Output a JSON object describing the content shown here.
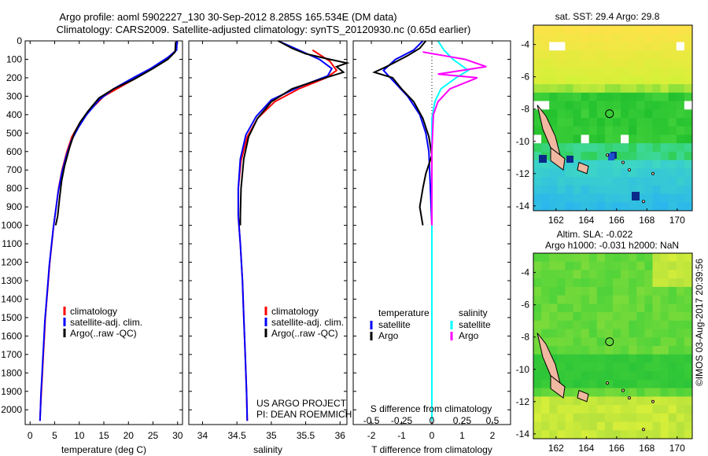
{
  "header": {
    "line1": "Argo profile: aoml 5902227_130 30-Sep-2012 8.285S 165.534E (DM data)",
    "line2": "Climatology: CARS2009. Satellite-adjusted climatology: synTS_20120930.nc (0.65d earlier)"
  },
  "colors": {
    "climatology": "#ff0000",
    "satellite": "#0000ff",
    "argo": "#000000",
    "sat_diff": "#00ffff",
    "argo_s_diff": "#ff00ff"
  },
  "icons": [
    "legend-line-icon",
    "float-position-circle-icon"
  ],
  "depth_ticks": [
    0,
    100,
    200,
    300,
    400,
    500,
    600,
    700,
    800,
    900,
    1000,
    1100,
    1200,
    1300,
    1400,
    1500,
    1600,
    1700,
    1800,
    1900,
    2000
  ],
  "chart_data": [
    {
      "type": "line",
      "name": "temperature-profile",
      "xlabel": "temperature (deg C)",
      "xlim": [
        -1,
        31
      ],
      "ylim": [
        2080,
        0
      ],
      "xticks": [
        0,
        5,
        10,
        15,
        20,
        25,
        30
      ],
      "legend": [
        "climatology",
        "satellite-adj. clim.",
        "Argo(..raw -QC)"
      ],
      "legend_position": "lower-center",
      "series": [
        {
          "name": "climatology",
          "points": [
            [
              29.8,
              0
            ],
            [
              29.7,
              50
            ],
            [
              28.5,
              80
            ],
            [
              26,
              130
            ],
            [
              23,
              180
            ],
            [
              19,
              240
            ],
            [
              15,
              300
            ],
            [
              12,
              380
            ],
            [
              10,
              450
            ],
            [
              8.5,
              520
            ],
            [
              7.5,
              600
            ],
            [
              6.5,
              700
            ],
            [
              5.8,
              800
            ],
            [
              5.3,
              900
            ],
            [
              4.8,
              1000
            ],
            [
              4.4,
              1100
            ],
            [
              4.0,
              1200
            ],
            [
              3.7,
              1300
            ],
            [
              3.4,
              1400
            ],
            [
              3.1,
              1500
            ],
            [
              2.9,
              1600
            ],
            [
              2.7,
              1700
            ],
            [
              2.5,
              1800
            ],
            [
              2.3,
              1900
            ],
            [
              2.1,
              2000
            ],
            [
              2.0,
              2060
            ]
          ]
        },
        {
          "name": "satellite-adj. clim.",
          "points": [
            [
              29.9,
              0
            ],
            [
              29.8,
              50
            ],
            [
              28,
              90
            ],
            [
              24.5,
              150
            ],
            [
              21,
              200
            ],
            [
              17,
              260
            ],
            [
              14,
              320
            ],
            [
              11.5,
              400
            ],
            [
              9.8,
              470
            ],
            [
              8.4,
              540
            ],
            [
              7.4,
              620
            ],
            [
              6.4,
              720
            ],
            [
              5.7,
              820
            ],
            [
              5.2,
              920
            ],
            [
              4.7,
              1020
            ],
            [
              4.3,
              1120
            ],
            [
              3.9,
              1220
            ],
            [
              3.6,
              1320
            ],
            [
              3.3,
              1420
            ],
            [
              3.0,
              1520
            ],
            [
              2.8,
              1620
            ],
            [
              2.6,
              1720
            ],
            [
              2.4,
              1820
            ],
            [
              2.2,
              1920
            ],
            [
              2.1,
              2000
            ],
            [
              2.0,
              2060
            ]
          ]
        },
        {
          "name": "Argo(..raw -QC)",
          "points": [
            [
              29.6,
              5
            ],
            [
              29.5,
              60
            ],
            [
              28,
              100
            ],
            [
              25,
              150
            ],
            [
              21,
              210
            ],
            [
              17,
              260
            ],
            [
              14,
              310
            ],
            [
              11.8,
              380
            ],
            [
              10.2,
              440
            ],
            [
              9,
              500
            ],
            [
              8,
              580
            ],
            [
              7,
              680
            ],
            [
              6.4,
              760
            ],
            [
              6.0,
              850
            ],
            [
              5.6,
              950
            ],
            [
              5.2,
              1000
            ]
          ]
        }
      ]
    },
    {
      "type": "line",
      "name": "salinity-profile",
      "xlabel": "salinity",
      "xlim": [
        33.8,
        36.1
      ],
      "ylim": [
        2080,
        0
      ],
      "xticks": [
        34,
        34.5,
        35,
        35.5,
        36
      ],
      "legend": [
        "climatology",
        "satellite-adj. clim.",
        "Argo(..raw -QC)"
      ],
      "legend_position": "lower-right",
      "annotation": [
        "US ARGO PROJECT",
        "PI: DEAN ROEMMICH"
      ],
      "series": [
        {
          "name": "climatology",
          "points": [
            [
              35.6,
              50
            ],
            [
              35.85,
              110
            ],
            [
              35.95,
              160
            ],
            [
              35.8,
              200
            ],
            [
              35.4,
              260
            ],
            [
              35.05,
              330
            ],
            [
              34.8,
              420
            ],
            [
              34.65,
              520
            ],
            [
              34.56,
              650
            ],
            [
              34.52,
              800
            ],
            [
              34.52,
              950
            ],
            [
              34.55,
              1100
            ],
            [
              34.58,
              1300
            ],
            [
              34.6,
              1500
            ],
            [
              34.62,
              1700
            ],
            [
              34.64,
              1900
            ],
            [
              34.65,
              2060
            ]
          ]
        },
        {
          "name": "satellite-adj. clim.",
          "points": [
            [
              35.1,
              0
            ],
            [
              35.4,
              50
            ],
            [
              35.7,
              100
            ],
            [
              35.88,
              150
            ],
            [
              35.82,
              190
            ],
            [
              35.4,
              250
            ],
            [
              35.0,
              320
            ],
            [
              34.78,
              410
            ],
            [
              34.63,
              510
            ],
            [
              34.55,
              640
            ],
            [
              34.52,
              800
            ],
            [
              34.52,
              950
            ],
            [
              34.55,
              1100
            ],
            [
              34.58,
              1300
            ],
            [
              34.6,
              1500
            ],
            [
              34.62,
              1700
            ],
            [
              34.64,
              1900
            ],
            [
              34.65,
              2060
            ]
          ]
        },
        {
          "name": "Argo(..raw -QC)",
          "points": [
            [
              35.1,
              0
            ],
            [
              35.3,
              40
            ],
            [
              35.5,
              70
            ],
            [
              35.85,
              100
            ],
            [
              36.1,
              120
            ],
            [
              35.95,
              140
            ],
            [
              36.05,
              170
            ],
            [
              35.7,
              210
            ],
            [
              35.3,
              260
            ],
            [
              35.0,
              330
            ],
            [
              34.8,
              420
            ],
            [
              34.67,
              520
            ],
            [
              34.6,
              640
            ],
            [
              34.56,
              800
            ],
            [
              34.55,
              950
            ],
            [
              34.55,
              1000
            ]
          ]
        }
      ]
    },
    {
      "type": "line",
      "name": "difference-profile",
      "xlabel": "T difference from climatology",
      "x2label": "S difference from climatology",
      "xlim": [
        -2.6,
        2.6
      ],
      "ylim": [
        2080,
        0
      ],
      "xticks": [
        -2,
        -1,
        0,
        1,
        2
      ],
      "x2ticks": [
        "-0.5",
        "-0.25",
        "0",
        "0.25",
        "0.5"
      ],
      "x2tick_positions": [
        -2,
        -1,
        0,
        1,
        2
      ],
      "legend_headers": [
        "temperature",
        "salinity"
      ],
      "legend": [
        "satellite",
        "Argo",
        "satellite",
        "Argo"
      ],
      "legend_position": "lower-center",
      "series": [
        {
          "name": "temperature satellite",
          "points": [
            [
              -0.3,
              0
            ],
            [
              -0.6,
              50
            ],
            [
              -1.2,
              100
            ],
            [
              -1.6,
              160
            ],
            [
              -1.2,
              230
            ],
            [
              -0.8,
              300
            ],
            [
              -0.4,
              400
            ],
            [
              -0.2,
              500
            ],
            [
              -0.1,
              600
            ],
            [
              -0.05,
              800
            ],
            [
              0,
              1000
            ],
            [
              0,
              1500
            ],
            [
              0,
              2060
            ]
          ]
        },
        {
          "name": "temperature Argo",
          "points": [
            [
              -0.2,
              0
            ],
            [
              -0.4,
              40
            ],
            [
              -0.8,
              80
            ],
            [
              -1.5,
              140
            ],
            [
              -1.9,
              170
            ],
            [
              -1.3,
              200
            ],
            [
              -1.0,
              260
            ],
            [
              -0.6,
              330
            ],
            [
              -0.3,
              420
            ],
            [
              -0.1,
              520
            ],
            [
              0,
              620
            ],
            [
              -0.2,
              720
            ],
            [
              -0.3,
              800
            ],
            [
              -0.4,
              900
            ],
            [
              -0.3,
              1000
            ]
          ]
        },
        {
          "name": "salinity satellite",
          "points": [
            [
              0.2,
              0
            ],
            [
              0.4,
              50
            ],
            [
              0.7,
              100
            ],
            [
              1.2,
              160
            ],
            [
              0.8,
              200
            ],
            [
              0.3,
              260
            ],
            [
              0.1,
              330
            ],
            [
              0,
              420
            ],
            [
              0,
              600
            ],
            [
              0,
              1000
            ],
            [
              0,
              2060
            ]
          ]
        },
        {
          "name": "salinity Argo",
          "points": [
            [
              -0.3,
              60
            ],
            [
              0.4,
              80
            ],
            [
              1.1,
              100
            ],
            [
              1.8,
              140
            ],
            [
              0.2,
              180
            ],
            [
              1.5,
              200
            ],
            [
              0.6,
              260
            ],
            [
              0.2,
              330
            ],
            [
              0.05,
              400
            ],
            [
              0,
              600
            ],
            [
              0,
              1000
            ]
          ]
        }
      ]
    },
    {
      "type": "heatmap",
      "name": "sst-map",
      "title": "sat. SST: 29.4  Argo: 29.8",
      "xlim": [
        160.5,
        171
      ],
      "ylim": [
        -14.3,
        -2.8
      ],
      "xticks": [
        162,
        164,
        166,
        168,
        170
      ],
      "yticks": [
        -4,
        -6,
        -8,
        -10,
        -12,
        -14
      ],
      "marker": [
        165.534,
        -8.285
      ]
    },
    {
      "type": "heatmap",
      "name": "sla-map",
      "title": "Altim. SLA: -0.022",
      "subtitle": "Argo h1000: -0.031  h2000: NaN",
      "xlim": [
        160.5,
        171
      ],
      "ylim": [
        -14.3,
        -2.8
      ],
      "xticks": [
        162,
        164,
        166,
        168,
        170
      ],
      "yticks": [
        -4,
        -6,
        -8,
        -10,
        -12,
        -14
      ],
      "marker": [
        165.534,
        -8.285
      ]
    }
  ],
  "credit": "©IMOS 03-Aug-2017 20:39:56"
}
